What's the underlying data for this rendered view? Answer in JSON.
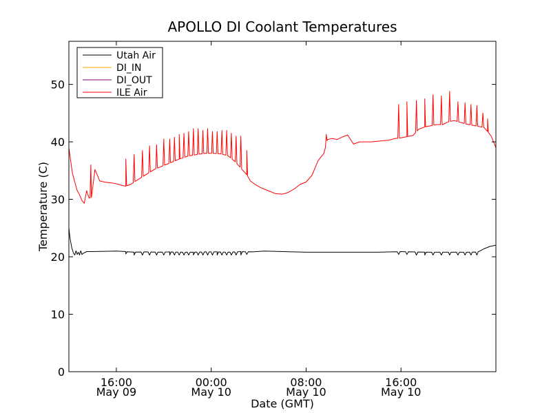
{
  "chart_data": {
    "type": "line",
    "title": "APOLLO DI Coolant Temperatures",
    "xlabel": "Date (GMT)",
    "ylabel": "Temperature (C)",
    "ylim": [
      0,
      57.5
    ],
    "xlim_hours": [
      12.0,
      48.0
    ],
    "x_unit": "hours since 00:00 May 09 GMT",
    "grid": false,
    "legend_position": "top-left",
    "yticks": [
      {
        "value": 0,
        "label": "0"
      },
      {
        "value": 10,
        "label": "10"
      },
      {
        "value": 20,
        "label": "20"
      },
      {
        "value": 30,
        "label": "30"
      },
      {
        "value": 40,
        "label": "40"
      },
      {
        "value": 50,
        "label": "50"
      }
    ],
    "xticks": [
      {
        "value": 16,
        "time": "16:00",
        "date": "May 09"
      },
      {
        "value": 24,
        "time": "00:00",
        "date": "May 10"
      },
      {
        "value": 32,
        "time": "08:00",
        "date": "May 10"
      },
      {
        "value": 40,
        "time": "16:00",
        "date": "May 10"
      }
    ],
    "series": [
      {
        "name": "Utah Air",
        "color": "#000000",
        "x": [
          12.0,
          12.1,
          12.25,
          12.4,
          12.6,
          12.8,
          13.0,
          13.2,
          13.5,
          14.0,
          15.0,
          16.0,
          16.8,
          17.5,
          18.5,
          19.5,
          20.5,
          21.5,
          22.5,
          23.5,
          24.5,
          25.5,
          26.5,
          27.5,
          28.5,
          30.0,
          32.0,
          34.0,
          36.0,
          38.0,
          40.0,
          41.0,
          42.0,
          43.0,
          44.0,
          45.0,
          46.0,
          46.5,
          47.0,
          47.5,
          48.0
        ],
        "values": [
          25.0,
          23.2,
          21.5,
          20.6,
          21.0,
          20.7,
          21.0,
          20.6,
          20.9,
          20.9,
          20.95,
          21.0,
          20.9,
          20.8,
          20.85,
          20.8,
          20.85,
          20.8,
          20.8,
          20.85,
          20.85,
          20.8,
          20.9,
          20.85,
          21.0,
          20.9,
          20.8,
          20.8,
          20.8,
          20.8,
          20.9,
          20.85,
          20.8,
          20.8,
          20.8,
          20.8,
          20.8,
          20.85,
          21.4,
          21.8,
          22.0
        ]
      },
      {
        "name": "DI_IN",
        "color": "#FFA500",
        "x": [],
        "values": []
      },
      {
        "name": "DI_OUT",
        "color": "#800080",
        "x": [],
        "values": []
      },
      {
        "name": "ILE Air",
        "color": "#FF0000",
        "x": [
          12.0,
          12.1,
          12.2,
          12.3,
          12.5,
          12.7,
          12.9,
          13.1,
          13.3,
          13.5,
          13.7,
          13.9,
          14.2,
          14.6,
          15.0,
          15.4,
          15.8,
          16.2,
          16.5,
          16.8,
          17.2,
          17.8,
          18.5,
          19.2,
          19.9,
          20.6,
          21.3,
          22.0,
          22.8,
          23.5,
          24.2,
          24.8,
          25.4,
          26.0,
          26.6,
          27.0,
          27.3,
          27.7,
          28.2,
          28.8,
          29.4,
          30.0,
          30.5,
          31.0,
          31.5,
          32.0,
          32.5,
          33.0,
          33.5,
          33.8,
          34.2,
          34.6,
          35.0,
          35.5,
          36.0,
          36.5,
          37.0,
          37.5,
          38.0,
          38.5,
          39.0,
          39.5,
          40.0,
          40.5,
          41.0,
          41.5,
          42.0,
          42.5,
          43.0,
          43.5,
          44.0,
          44.5,
          45.0,
          45.5,
          46.0,
          46.5,
          47.0,
          47.3,
          47.6,
          47.8,
          48.0
        ],
        "values": [
          39.0,
          37.5,
          36.0,
          34.5,
          33.0,
          31.5,
          30.8,
          29.8,
          29.3,
          31.5,
          30.2,
          30.3,
          35.2,
          33.2,
          33.0,
          32.9,
          32.8,
          32.6,
          32.4,
          32.3,
          32.6,
          33.4,
          34.3,
          35.2,
          35.8,
          36.4,
          37.0,
          37.5,
          37.8,
          38.0,
          38.0,
          37.9,
          37.6,
          36.6,
          35.2,
          34.3,
          33.2,
          32.6,
          32.0,
          31.5,
          31.0,
          30.9,
          31.2,
          31.8,
          32.6,
          33.0,
          34.2,
          36.7,
          38.0,
          40.4,
          40.6,
          40.4,
          40.8,
          41.2,
          39.6,
          40.0,
          40.0,
          40.0,
          40.1,
          40.2,
          40.3,
          40.6,
          40.7,
          40.9,
          41.1,
          42.2,
          42.6,
          42.8,
          43.0,
          43.0,
          43.5,
          43.7,
          43.4,
          43.1,
          42.9,
          42.7,
          42.5,
          41.8,
          41.0,
          40.0,
          39.0
        ]
      }
    ],
    "ile_spikes": {
      "x": [
        13.85,
        16.8,
        17.5,
        18.2,
        18.8,
        19.4,
        20.0,
        20.5,
        20.9,
        21.3,
        21.7,
        22.1,
        22.5,
        22.9,
        23.3,
        23.7,
        24.1,
        24.5,
        24.9,
        25.3,
        25.7,
        26.1,
        26.5,
        27.0,
        33.7,
        39.8,
        40.5,
        41.3,
        42.0,
        42.7,
        43.4,
        44.1,
        44.8,
        45.4,
        45.9,
        46.4,
        46.9,
        47.3
      ],
      "values": [
        36.0,
        37.0,
        37.8,
        38.5,
        39.3,
        39.5,
        40.5,
        40.5,
        40.8,
        41.3,
        41.5,
        41.8,
        42.3,
        42.3,
        42.0,
        42.3,
        41.8,
        41.8,
        42.0,
        42.0,
        41.5,
        41.0,
        41.0,
        38.5,
        41.3,
        46.5,
        47.0,
        47.2,
        47.5,
        48.2,
        48.0,
        48.8,
        47.0,
        46.8,
        46.5,
        46.3,
        45.0,
        44.0
      ]
    },
    "utah_dips": {
      "x": [
        12.5,
        12.7,
        12.9,
        13.1,
        16.8,
        17.5,
        18.2,
        18.8,
        19.4,
        20.0,
        20.5,
        20.9,
        21.3,
        21.7,
        22.1,
        22.5,
        22.9,
        23.3,
        23.7,
        24.1,
        24.5,
        24.9,
        25.3,
        25.7,
        26.1,
        26.5,
        27.0,
        39.8,
        40.5,
        41.3,
        42.0,
        42.7,
        43.4,
        44.1,
        44.8,
        45.4,
        45.9,
        46.4
      ],
      "values": [
        20.3,
        20.4,
        20.3,
        20.4,
        20.5,
        20.3,
        20.3,
        20.3,
        20.3,
        20.3,
        20.3,
        20.3,
        20.3,
        20.3,
        20.3,
        20.3,
        20.3,
        20.3,
        20.3,
        20.3,
        20.3,
        20.3,
        20.3,
        20.3,
        20.3,
        20.3,
        20.4,
        20.4,
        20.4,
        20.3,
        20.3,
        20.3,
        20.3,
        20.3,
        20.3,
        20.3,
        20.3,
        20.3
      ]
    }
  }
}
